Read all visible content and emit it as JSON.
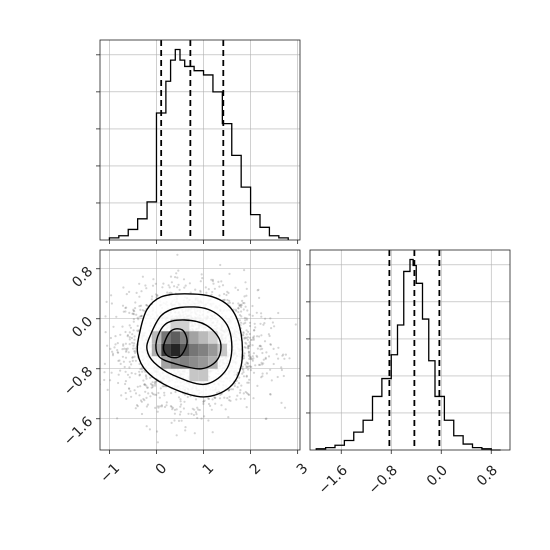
{
  "chart_data": {
    "type": "corner",
    "parameters": [
      {
        "label": "",
        "range": [
          -1.2,
          3.05
        ],
        "ticks": [
          -1,
          0,
          1,
          2,
          3
        ],
        "tick_labels": [
          "−1",
          "0",
          "1",
          "2",
          "3"
        ],
        "quantiles": [
          0.1,
          0.72,
          1.42
        ],
        "histogram": {
          "bins": [
            -1.0,
            -0.8,
            -0.6,
            -0.4,
            -0.2,
            0.0,
            0.2,
            0.3,
            0.4,
            0.5,
            0.6,
            0.8,
            1.0,
            1.2,
            1.4,
            1.6,
            1.8,
            2.0,
            2.2,
            2.4,
            2.6,
            2.8
          ],
          "counts": [
            1,
            2,
            5,
            10,
            18,
            60,
            75,
            85,
            90,
            85,
            82,
            80,
            78,
            70,
            55,
            40,
            25,
            12,
            6,
            2,
            1
          ]
        }
      },
      {
        "label": "",
        "range": [
          -2.1,
          1.1
        ],
        "ticks": [
          -1.6,
          -0.8,
          0.0,
          0.8
        ],
        "tick_labels": [
          "−1.6",
          "−0.8",
          "0.0",
          "0.8"
        ],
        "quantiles": [
          -0.83,
          -0.43,
          -0.03
        ],
        "histogram": {
          "bins": [
            -2.0,
            -1.85,
            -1.7,
            -1.55,
            -1.4,
            -1.25,
            -1.1,
            -0.95,
            -0.8,
            -0.7,
            -0.6,
            -0.5,
            -0.45,
            -0.4,
            -0.3,
            -0.2,
            -0.1,
            0.05,
            0.2,
            0.35,
            0.5,
            0.65,
            0.8,
            0.95
          ],
          "counts": [
            1,
            2,
            4,
            8,
            15,
            25,
            45,
            60,
            80,
            105,
            150,
            160,
            155,
            140,
            110,
            75,
            45,
            25,
            12,
            5,
            2,
            1,
            0
          ]
        }
      }
    ],
    "joint": {
      "x_range": [
        -1.2,
        3.05
      ],
      "y_range": [
        -2.1,
        1.1
      ],
      "x_ticks": [
        -1,
        0,
        1,
        2,
        3
      ],
      "y_ticks": [
        -1.6,
        -0.8,
        0.0,
        0.8
      ],
      "y_tick_labels": [
        "−1.6",
        "−0.8",
        "0.0",
        "0.8"
      ],
      "scatter_center": [
        0.75,
        -0.45
      ],
      "scatter_spread": [
        0.7,
        0.45
      ],
      "density_cells": [
        {
          "x": 0.2,
          "y": -0.3,
          "level": 0.6
        },
        {
          "x": 0.4,
          "y": -0.3,
          "level": 0.7
        },
        {
          "x": 0.6,
          "y": -0.3,
          "level": 0.55
        },
        {
          "x": 0.8,
          "y": -0.3,
          "level": 0.4
        },
        {
          "x": 1.0,
          "y": -0.3,
          "level": 0.3
        },
        {
          "x": 1.2,
          "y": -0.3,
          "level": 0.2
        },
        {
          "x": 0.2,
          "y": -0.5,
          "level": 0.85
        },
        {
          "x": 0.4,
          "y": -0.5,
          "level": 0.95
        },
        {
          "x": 0.6,
          "y": -0.5,
          "level": 0.75
        },
        {
          "x": 0.8,
          "y": -0.5,
          "level": 0.6
        },
        {
          "x": 1.0,
          "y": -0.5,
          "level": 0.55
        },
        {
          "x": 1.2,
          "y": -0.5,
          "level": 0.45
        },
        {
          "x": 1.4,
          "y": -0.5,
          "level": 0.25
        },
        {
          "x": 0.0,
          "y": -0.5,
          "level": 0.35
        },
        {
          "x": 0.0,
          "y": -0.3,
          "level": 0.3
        },
        {
          "x": 0.2,
          "y": -0.7,
          "level": 0.4
        },
        {
          "x": 0.4,
          "y": -0.7,
          "level": 0.5
        },
        {
          "x": 0.6,
          "y": -0.7,
          "level": 0.55
        },
        {
          "x": 0.8,
          "y": -0.7,
          "level": 0.5
        },
        {
          "x": 1.0,
          "y": -0.7,
          "level": 0.45
        },
        {
          "x": 1.2,
          "y": -0.7,
          "level": 0.35
        },
        {
          "x": 0.8,
          "y": -0.9,
          "level": 0.25
        },
        {
          "x": 1.0,
          "y": -0.9,
          "level": 0.25
        },
        {
          "x": 0.4,
          "y": -0.1,
          "level": 0.2
        },
        {
          "x": 0.6,
          "y": -0.1,
          "level": 0.2
        }
      ],
      "contours": [
        [
          [
            -0.35,
            -0.2
          ],
          [
            -0.2,
            0.15
          ],
          [
            0.1,
            0.35
          ],
          [
            0.6,
            0.4
          ],
          [
            1.2,
            0.35
          ],
          [
            1.6,
            0.15
          ],
          [
            1.8,
            -0.25
          ],
          [
            1.8,
            -0.75
          ],
          [
            1.55,
            -1.1
          ],
          [
            1.0,
            -1.25
          ],
          [
            0.3,
            -1.1
          ],
          [
            -0.2,
            -0.85
          ],
          [
            -0.4,
            -0.55
          ]
        ],
        [
          [
            -0.15,
            -0.3
          ],
          [
            0.1,
            0.05
          ],
          [
            0.5,
            0.18
          ],
          [
            1.1,
            0.15
          ],
          [
            1.5,
            -0.1
          ],
          [
            1.6,
            -0.5
          ],
          [
            1.45,
            -0.85
          ],
          [
            1.0,
            -1.05
          ],
          [
            0.35,
            -0.9
          ],
          [
            -0.05,
            -0.7
          ],
          [
            -0.2,
            -0.5
          ]
        ],
        [
          [
            0.0,
            -0.35
          ],
          [
            0.2,
            -0.08
          ],
          [
            0.6,
            -0.02
          ],
          [
            1.05,
            -0.1
          ],
          [
            1.35,
            -0.35
          ],
          [
            1.3,
            -0.65
          ],
          [
            0.95,
            -0.8
          ],
          [
            0.4,
            -0.72
          ],
          [
            0.05,
            -0.6
          ]
        ],
        [
          [
            0.15,
            -0.45
          ],
          [
            0.3,
            -0.2
          ],
          [
            0.55,
            -0.18
          ],
          [
            0.65,
            -0.38
          ],
          [
            0.5,
            -0.6
          ],
          [
            0.25,
            -0.6
          ]
        ]
      ]
    }
  }
}
